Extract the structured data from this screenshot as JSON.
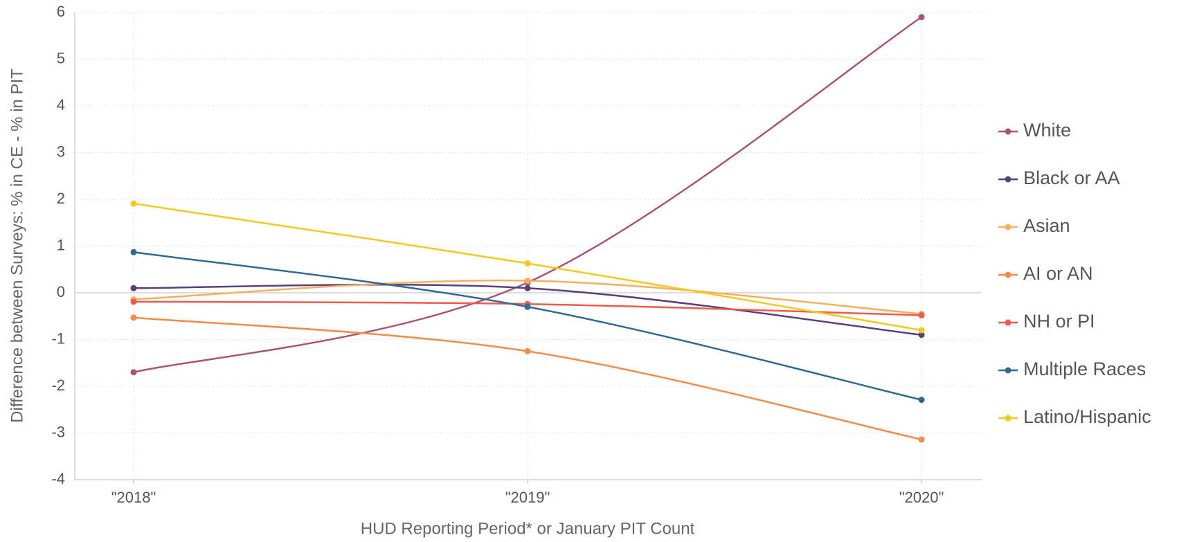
{
  "chart_data": {
    "type": "line",
    "x_label": "HUD Reporting Period* or January PIT Count",
    "y_label": "Difference between Surveys: % in CE - % in PIT",
    "categories": [
      "\"2018\"",
      "\"2019\"",
      "\"2020\""
    ],
    "series": [
      {
        "name": "White",
        "color": "#a8546f",
        "values": [
          -1.7,
          0.22,
          5.9
        ]
      },
      {
        "name": "Black or AA",
        "color": "#5a3f7a",
        "values": [
          0.1,
          0.1,
          -0.9
        ]
      },
      {
        "name": "Asian",
        "color": "#f4b05a",
        "values": [
          -0.14,
          0.26,
          -0.45
        ]
      },
      {
        "name": "AI or AN",
        "color": "#f58a4a",
        "values": [
          -0.53,
          -1.25,
          -3.14
        ]
      },
      {
        "name": "NH or PI",
        "color": "#f05a4a",
        "values": [
          -0.19,
          -0.24,
          -0.48
        ]
      },
      {
        "name": "Multiple Races",
        "color": "#2e6a93",
        "values": [
          0.87,
          -0.3,
          -2.29
        ]
      },
      {
        "name": "Latino/Hispanic",
        "color": "#f5c81a",
        "values": [
          1.91,
          0.63,
          -0.8
        ]
      }
    ],
    "ylim": [
      -4,
      6
    ],
    "yticks": [
      -4,
      -3,
      -2,
      -1,
      0,
      1,
      2,
      3,
      4,
      5,
      6
    ],
    "grid": true,
    "legend": "right",
    "smooth": true
  }
}
